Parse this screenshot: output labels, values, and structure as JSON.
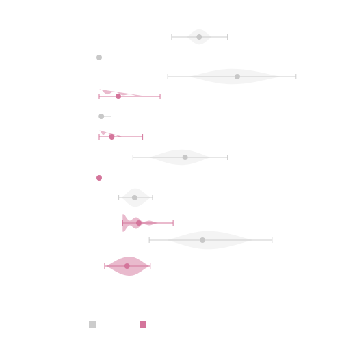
{
  "chart_data": {
    "type": "violin",
    "orientation": "horizontal",
    "title": "",
    "xlabel": "",
    "ylabel": "",
    "xlim": [
      0,
      1
    ],
    "grid": false,
    "legend": {
      "placement": "bottom-left",
      "entries": [
        {
          "label": "",
          "color": "#cccccc"
        },
        {
          "label": "",
          "color": "#d4759b"
        }
      ]
    },
    "series_colors": {
      "gray": {
        "fill": "#d9d9d9",
        "fill_opacity": 0.3,
        "stroke": "#cccccc",
        "point": "#c8c8c8"
      },
      "pink": {
        "fill": "#d4759b",
        "fill_opacity": 0.5,
        "stroke": "#d4759b",
        "point": "#d4759b"
      }
    },
    "rows": [
      {
        "series": "gray",
        "row": 0,
        "median": 0.46,
        "min": 0.333,
        "max": 0.59,
        "peak": 0.46,
        "density_min": 0.4,
        "density_max": 0.52,
        "half_width": 0.8
      },
      {
        "series": "gray",
        "row": 1,
        "median": 0.0,
        "min": 0.0,
        "max": 0.0,
        "peak": 0.0,
        "density_min": 0.0,
        "density_max": 0.0,
        "half_width": 0.0
      },
      {
        "series": "gray",
        "row": 2,
        "median": 0.635,
        "min": 0.315,
        "max": 0.905,
        "peak": 0.61,
        "density_min": 0.4,
        "density_max": 0.85,
        "half_width": 0.8
      },
      {
        "series": "pink",
        "row": 3,
        "median": 0.088,
        "min": 0.0,
        "max": 0.28,
        "peak": 0.08,
        "density_min": 0.0,
        "density_max": 0.22,
        "half_width": 0.75,
        "flat_left": true
      },
      {
        "series": "gray",
        "row": 4,
        "median": 0.01,
        "min": 0.005,
        "max": 0.055,
        "peak": 0.01,
        "density_min": 0.0,
        "density_max": 0.03,
        "half_width": 0.15
      },
      {
        "series": "pink",
        "row": 5,
        "median": 0.058,
        "min": 0.0,
        "max": 0.2,
        "peak": 0.06,
        "density_min": 0.0,
        "density_max": 0.11,
        "half_width": 0.7,
        "flat_left": true
      },
      {
        "series": "gray",
        "row": 6,
        "median": 0.395,
        "min": 0.155,
        "max": 0.59,
        "peak": 0.38,
        "density_min": 0.22,
        "density_max": 0.52,
        "half_width": 0.8
      },
      {
        "series": "pink",
        "row": 7,
        "median": 0.0,
        "min": 0.0,
        "max": 0.0,
        "peak": 0.0,
        "density_min": 0.0,
        "density_max": 0.0,
        "half_width": 0.0
      },
      {
        "series": "gray",
        "row": 8,
        "median": 0.163,
        "min": 0.09,
        "max": 0.245,
        "peak": 0.165,
        "density_min": 0.1,
        "density_max": 0.24,
        "half_width": 0.95
      },
      {
        "series": "pink",
        "row": 9,
        "median": 0.182,
        "min": 0.108,
        "max": 0.34,
        "peak": 0.15,
        "density_min": 0.108,
        "density_max": 0.3,
        "half_width": 0.9,
        "flat_left": true
      },
      {
        "series": "gray",
        "row": 10,
        "median": 0.475,
        "min": 0.23,
        "max": 0.795,
        "peak": 0.5,
        "density_min": 0.3,
        "density_max": 0.72,
        "half_width": 0.95
      },
      {
        "series": "pink",
        "row": 11,
        "median": 0.128,
        "min": 0.025,
        "max": 0.235,
        "peak": 0.14,
        "density_min": 0.025,
        "density_max": 0.235,
        "half_width": 1.0
      }
    ]
  }
}
